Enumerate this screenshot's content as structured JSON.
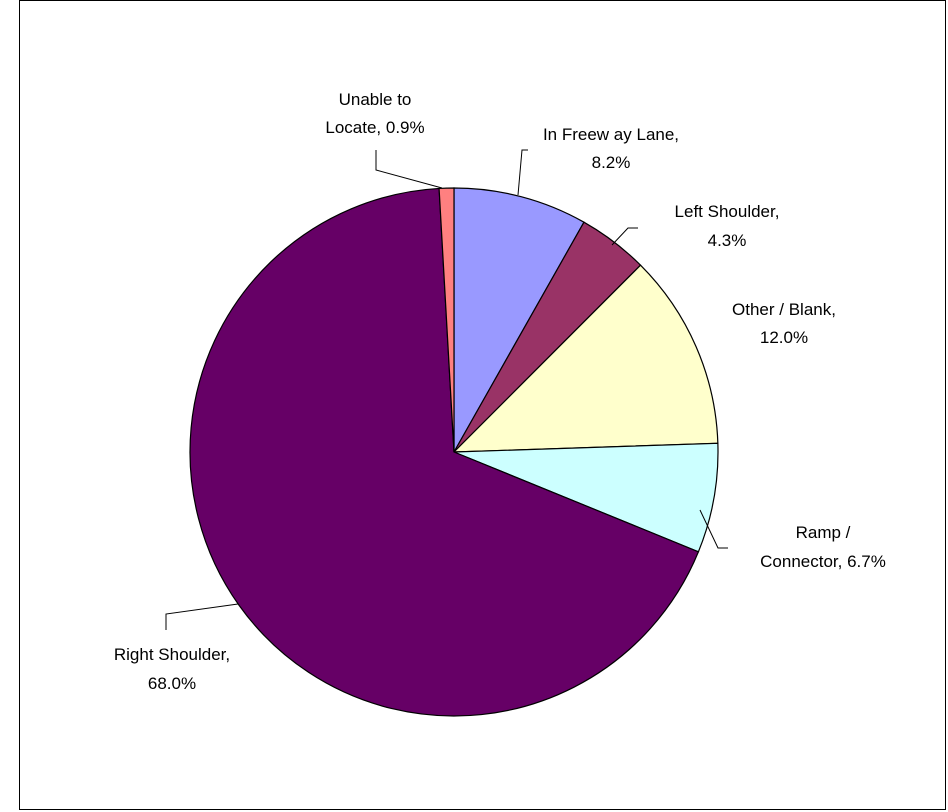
{
  "chart_data": {
    "type": "pie",
    "title": "",
    "slices": [
      {
        "label": "In Freew ay Lane,",
        "value_text": "8.2%",
        "value": 8.2,
        "color": "#9999FF"
      },
      {
        "label": "Left Shoulder,",
        "value_text": "4.3%",
        "value": 4.3,
        "color": "#993366"
      },
      {
        "label": "Other / Blank,",
        "value_text": "12.0%",
        "value": 12.0,
        "color": "#FFFFCC"
      },
      {
        "label": "Ramp /",
        "value_text": "Connector, 6.7%",
        "value": 6.7,
        "color": "#CCFFFF"
      },
      {
        "label": "Right Shoulder,",
        "value_text": "68.0%",
        "value": 68.0,
        "color": "#660066"
      },
      {
        "label": "Unable to",
        "value_text": "Locate, 0.9%",
        "value": 0.9,
        "color": "#FF8080"
      }
    ],
    "start_angle": "12 o'clock",
    "direction": "clockwise",
    "legend": "none",
    "labels": "outside with leader lines"
  }
}
